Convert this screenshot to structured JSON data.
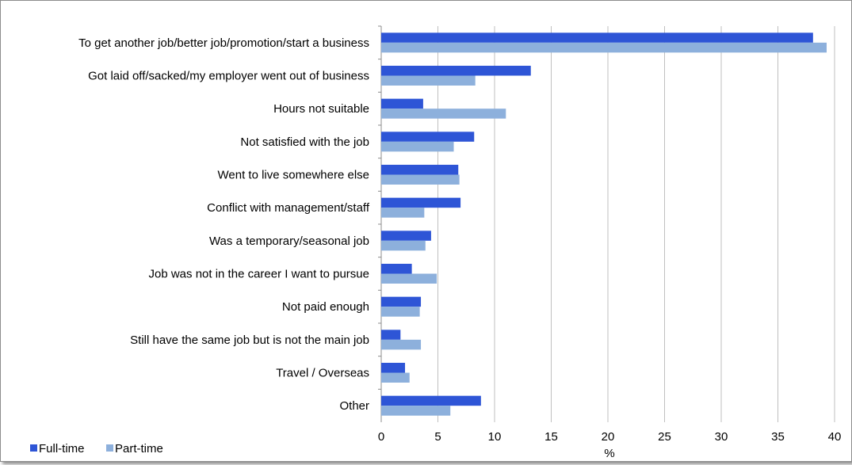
{
  "chart_data": {
    "type": "bar",
    "orientation": "horizontal",
    "categories": [
      "To get another job/better job/promotion/start a business",
      "Got laid off/sacked/my employer went out of business",
      "Hours not suitable",
      "Not satisfied with the job",
      "Went to live somewhere else",
      "Conflict with management/staff",
      "Was a temporary/seasonal job",
      "Job was not in the career I want to pursue",
      "Not paid enough",
      "Still have the same job but is not the main job",
      "Travel / Overseas",
      "Other"
    ],
    "series": [
      {
        "name": "Full-time",
        "color": "#2e55d6",
        "values": [
          38.1,
          13.2,
          3.7,
          8.2,
          6.8,
          7.0,
          4.4,
          2.7,
          3.5,
          1.7,
          2.1,
          8.8
        ]
      },
      {
        "name": "Part-time",
        "color": "#8db0dc",
        "values": [
          39.3,
          8.3,
          11.0,
          6.4,
          6.9,
          3.8,
          3.9,
          4.9,
          3.4,
          3.5,
          2.5,
          6.1
        ]
      }
    ],
    "x_ticks": [
      0,
      5,
      10,
      15,
      20,
      25,
      30,
      35,
      40
    ],
    "xlim": [
      0,
      40
    ],
    "xlabel": "%",
    "ylabel": "",
    "title": "",
    "grid": "vertical",
    "legend_position": "bottom-left"
  }
}
